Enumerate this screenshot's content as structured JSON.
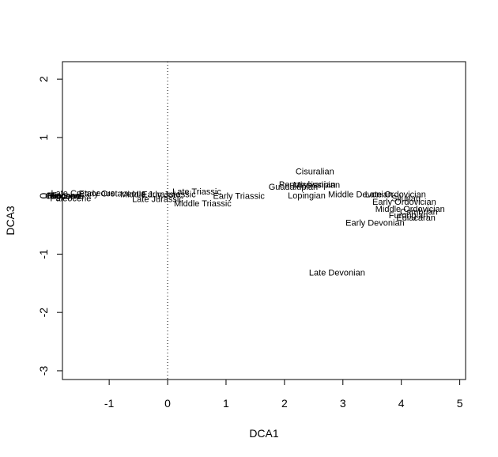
{
  "chart_data": {
    "type": "scatter",
    "title": "",
    "xlabel": "DCA1",
    "ylabel": "DCA3",
    "xlim": [
      -1.8,
      5.1
    ],
    "ylim": [
      -3.15,
      2.3
    ],
    "xticks": [
      -1,
      0,
      1,
      2,
      3,
      4,
      5
    ],
    "yticks": [
      -3,
      -2,
      -1,
      0,
      1,
      2
    ],
    "grid": false,
    "legend": "none",
    "reference_lines": [
      {
        "axis": "x",
        "value": 0,
        "style": "dotted"
      }
    ],
    "points": [
      {
        "label": "Pliocene",
        "x": -1.78,
        "y": 0.01
      },
      {
        "label": "Miocene",
        "x": -1.77,
        "y": 0.0
      },
      {
        "label": "Oligocene",
        "x": -1.76,
        "y": 0.0
      },
      {
        "label": "Eocene",
        "x": -1.75,
        "y": 0.01
      },
      {
        "label": "Paleocene",
        "x": -1.66,
        "y": -0.04
      },
      {
        "label": "Late Cretaceous",
        "x": -1.45,
        "y": 0.05
      },
      {
        "label": "Early Cretaceous",
        "x": -0.95,
        "y": 0.04
      },
      {
        "label": "Middle Jurassic",
        "x": -0.3,
        "y": 0.03
      },
      {
        "label": "Early Jurassic",
        "x": 0.02,
        "y": 0.03
      },
      {
        "label": "Late Jurassic",
        "x": -0.17,
        "y": -0.05
      },
      {
        "label": "Late Triassic",
        "x": 0.5,
        "y": 0.08
      },
      {
        "label": "Middle Triassic",
        "x": 0.6,
        "y": -0.13
      },
      {
        "label": "Early Triassic",
        "x": 1.22,
        "y": 0.0
      },
      {
        "label": "Cisuralian",
        "x": 2.52,
        "y": 0.42
      },
      {
        "label": "Pennsylvanian",
        "x": 2.39,
        "y": 0.2
      },
      {
        "label": "Mississipian",
        "x": 2.55,
        "y": 0.19
      },
      {
        "label": "Guadalupian",
        "x": 2.15,
        "y": 0.16
      },
      {
        "label": "Lopingian",
        "x": 2.38,
        "y": 0.01
      },
      {
        "label": "Middle Devonian",
        "x": 3.3,
        "y": 0.03
      },
      {
        "label": "Late Ordovician",
        "x": 3.9,
        "y": 0.03
      },
      {
        "label": "Silurian",
        "x": 4.08,
        "y": -0.04
      },
      {
        "label": "Early Ordovician",
        "x": 4.05,
        "y": -0.1
      },
      {
        "label": "Middle Ordovician",
        "x": 4.15,
        "y": -0.22
      },
      {
        "label": "Cambrian",
        "x": 4.3,
        "y": -0.27
      },
      {
        "label": "Furongian",
        "x": 4.12,
        "y": -0.33
      },
      {
        "label": "Ediacaran",
        "x": 4.25,
        "y": -0.37
      },
      {
        "label": "Early Devonian",
        "x": 3.55,
        "y": -0.46
      },
      {
        "label": "Late Devonian",
        "x": 2.9,
        "y": -1.31
      }
    ]
  }
}
